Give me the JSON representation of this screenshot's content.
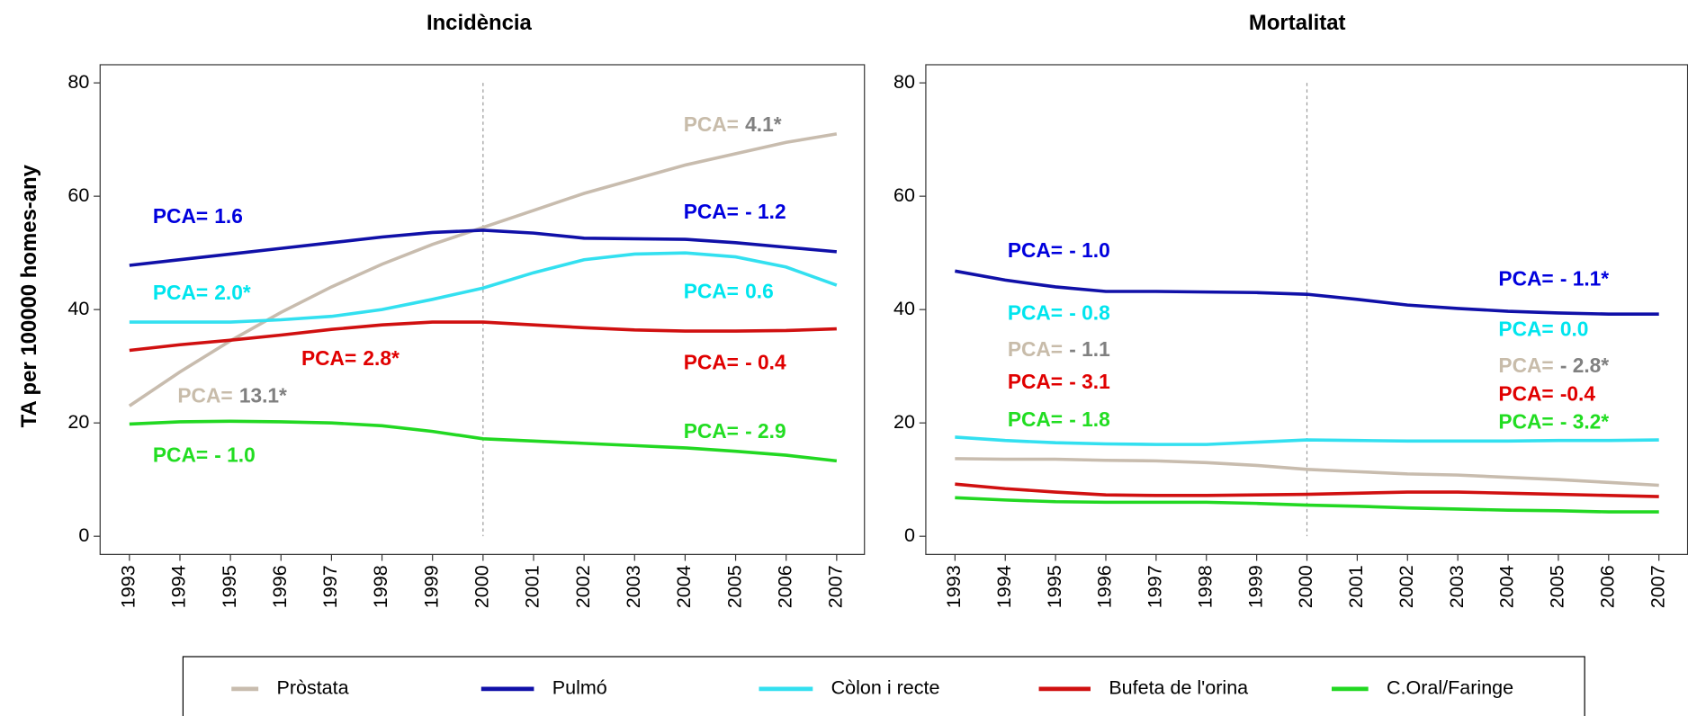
{
  "chart_data": [
    {
      "type": "line",
      "title": "Incidència",
      "y_label": "TA per 100000 homes-any",
      "x": [
        1993,
        1994,
        1995,
        1996,
        1997,
        1998,
        1999,
        2000,
        2001,
        2002,
        2003,
        2004,
        2005,
        2006,
        2007
      ],
      "xlim": [
        1992.42,
        2007.55
      ],
      "xticks": [
        1993,
        1994,
        1995,
        1996,
        1997,
        1998,
        1999,
        2000,
        2001,
        2002,
        2003,
        2004,
        2005,
        2006,
        2007
      ],
      "ylim": [
        -3.2,
        83.2
      ],
      "yticks": [
        0,
        20,
        40,
        60,
        80
      ],
      "vline": 2000,
      "series": [
        {
          "name": "Pròstata",
          "color": "#c8bcae",
          "values": [
            23,
            29,
            34.5,
            39.5,
            44,
            48,
            51.5,
            54.5,
            57.5,
            60.5,
            63,
            65.5,
            67.5,
            69.5,
            71
          ]
        },
        {
          "name": "Pulmó",
          "color": "#1010a8",
          "values": [
            47.8,
            48.8,
            49.8,
            50.8,
            51.8,
            52.8,
            53.6,
            54,
            53.5,
            52.6,
            52.5,
            52.4,
            51.8,
            51,
            50.2
          ]
        },
        {
          "name": "Còlon i recte",
          "color": "#33e0f0",
          "values": [
            37.8,
            37.8,
            37.8,
            38.2,
            38.8,
            40,
            41.8,
            43.8,
            46.5,
            48.8,
            49.8,
            50,
            49.3,
            47.5,
            44.3
          ]
        },
        {
          "name": "Bufeta de l'orina",
          "color": "#d01010",
          "values": [
            32.8,
            33.8,
            34.6,
            35.5,
            36.5,
            37.3,
            37.8,
            37.8,
            37.3,
            36.8,
            36.4,
            36.2,
            36.2,
            36.3,
            36.6
          ]
        },
        {
          "name": "C.Oral/Faringe",
          "color": "#22d822",
          "values": [
            19.8,
            20.2,
            20.3,
            20.2,
            20,
            19.5,
            18.5,
            17.2,
            16.8,
            16.4,
            16,
            15.6,
            15,
            14.3,
            13.3
          ]
        }
      ],
      "annotations": [
        {
          "prefix": "PCA=",
          "value": "1.6",
          "color": "#0000dd"
        },
        {
          "prefix": "PCA=",
          "value": "2.0*",
          "color": "#00e5ee"
        },
        {
          "prefix": "PCA=",
          "value": "2.8*",
          "color": "#e00000"
        },
        {
          "prefix": "PCA=",
          "value": "13.1*",
          "color": "#c8bcaa",
          "value_color": "#808080"
        },
        {
          "prefix": "PCA=",
          "value": "- 1.0",
          "color": "#22dd22"
        },
        {
          "prefix": "PCA=",
          "value": "4.1*",
          "color": "#c8bcaa",
          "value_color": "#808080"
        },
        {
          "prefix": "PCA=",
          "value": "- 1.2",
          "color": "#0000dd"
        },
        {
          "prefix": "PCA=",
          "value": "0.6",
          "color": "#00e5ee"
        },
        {
          "prefix": "PCA=",
          "value": "- 0.4",
          "color": "#e00000"
        },
        {
          "prefix": "PCA=",
          "value": "- 2.9",
          "color": "#22dd22"
        }
      ]
    },
    {
      "type": "line",
      "title": "Mortalitat",
      "x": [
        1993,
        1994,
        1995,
        1996,
        1997,
        1998,
        1999,
        2000,
        2001,
        2002,
        2003,
        2004,
        2005,
        2006,
        2007
      ],
      "xlim": [
        1992.42,
        2007.57
      ],
      "xticks": [
        1993,
        1994,
        1995,
        1996,
        1997,
        1998,
        1999,
        2000,
        2001,
        2002,
        2003,
        2004,
        2005,
        2006,
        2007
      ],
      "ylim": [
        -3.2,
        83.2
      ],
      "yticks": [
        0,
        20,
        40,
        60,
        80
      ],
      "vline": 2000,
      "series": [
        {
          "color": "#c8bcae",
          "values": [
            13.7,
            13.6,
            13.6,
            13.4,
            13.3,
            13,
            12.5,
            11.8,
            11.4,
            11,
            10.8,
            10.4,
            10,
            9.5,
            9
          ]
        },
        {
          "color": "#1010a8",
          "values": [
            46.8,
            45.2,
            44,
            43.2,
            43.2,
            43.1,
            43,
            42.7,
            41.8,
            40.8,
            40.2,
            39.7,
            39.4,
            39.2,
            39.2
          ]
        },
        {
          "color": "#33e0f0",
          "values": [
            17.5,
            16.9,
            16.5,
            16.3,
            16.2,
            16.2,
            16.6,
            17,
            16.9,
            16.8,
            16.8,
            16.8,
            16.9,
            16.9,
            17
          ]
        },
        {
          "color": "#d01010",
          "values": [
            9.2,
            8.4,
            7.8,
            7.3,
            7.2,
            7.2,
            7.3,
            7.4,
            7.6,
            7.8,
            7.8,
            7.6,
            7.4,
            7.2,
            7
          ]
        },
        {
          "color": "#22d822",
          "values": [
            6.8,
            6.4,
            6.1,
            6,
            6,
            6,
            5.8,
            5.5,
            5.3,
            5,
            4.8,
            4.6,
            4.5,
            4.3,
            4.3
          ]
        }
      ],
      "annotations": [
        {
          "prefix": "PCA=",
          "value": "- 1.0",
          "color": "#0000dd"
        },
        {
          "prefix": "PCA=",
          "value": "- 0.8",
          "color": "#00e5ee"
        },
        {
          "prefix": "PCA=",
          "value": "- 1.1",
          "color": "#c8bcaa",
          "value_color": "#808080"
        },
        {
          "prefix": "PCA=",
          "value": "- 3.1",
          "color": "#e00000"
        },
        {
          "prefix": "PCA=",
          "value": "- 1.8",
          "color": "#22dd22"
        },
        {
          "prefix": "PCA=",
          "value": "- 1.1*",
          "color": "#0000dd"
        },
        {
          "prefix": "PCA=",
          "value": "0.0",
          "color": "#00e5ee"
        },
        {
          "prefix": "PCA=",
          "value": "- 2.8*",
          "color": "#c8bcaa",
          "value_color": "#808080"
        },
        {
          "prefix": "PCA=",
          "value": "-0.4",
          "color": "#e00000"
        },
        {
          "prefix": "PCA=",
          "value": "- 3.2*",
          "color": "#22dd22"
        }
      ]
    }
  ]
}
